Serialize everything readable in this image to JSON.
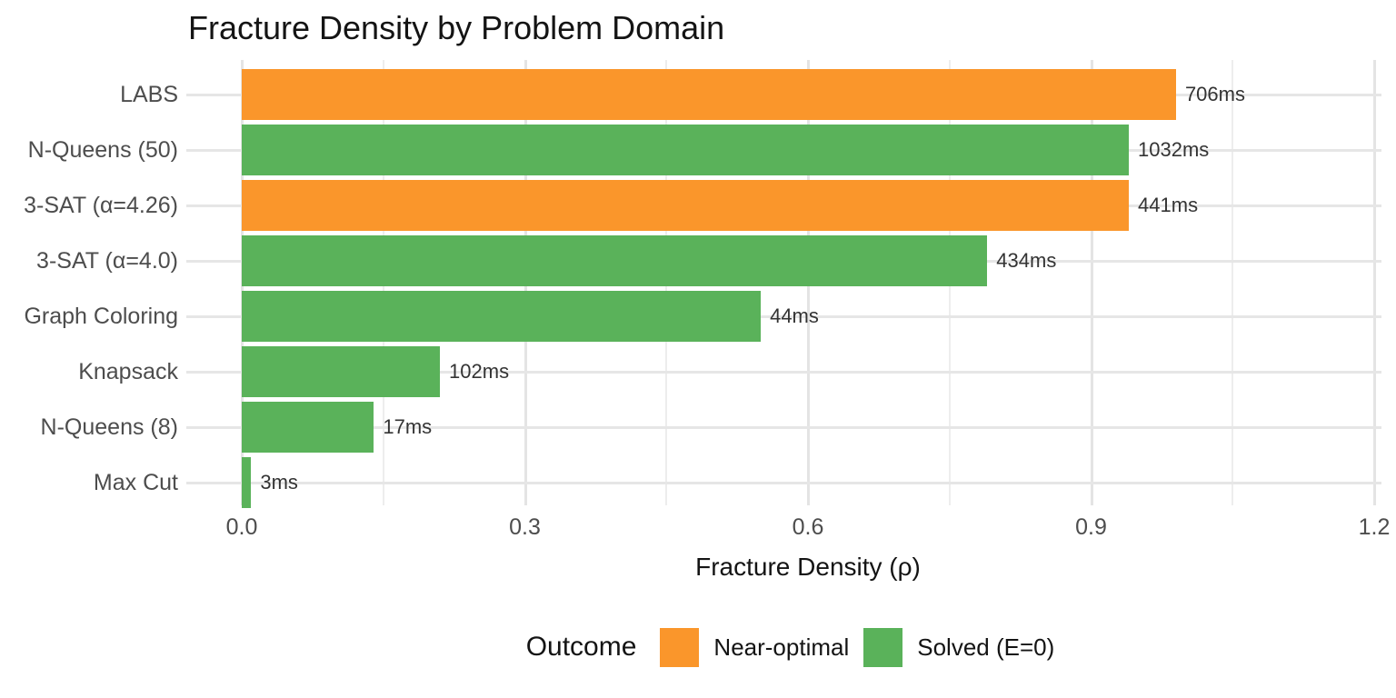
{
  "title": "Fracture Density by Problem Domain",
  "chart_data": {
    "type": "bar",
    "orientation": "horizontal",
    "title": "Fracture Density by Problem Domain",
    "xlabel": "Fracture Density (ρ)",
    "ylabel": "",
    "xlim": [
      0,
      1.2
    ],
    "grid": true,
    "x_major_ticks": [
      {
        "label": "0.0",
        "value": 0.0
      },
      {
        "label": "0.3",
        "value": 0.3
      },
      {
        "label": "0.6",
        "value": 0.6
      },
      {
        "label": "0.9",
        "value": 0.9
      },
      {
        "label": "1.2",
        "value": 1.2
      }
    ],
    "x_minor_tick_values": [
      0.15,
      0.45,
      0.75,
      1.05
    ],
    "categories": [
      "LABS",
      "N-Queens (50)",
      "3-SAT (α=4.26)",
      "3-SAT (α=4.0)",
      "Graph Coloring",
      "Knapsack",
      "N-Queens (8)",
      "Max Cut"
    ],
    "values": [
      0.99,
      0.94,
      0.94,
      0.79,
      0.55,
      0.21,
      0.14,
      0.01
    ],
    "outcomes": [
      "Near-optimal",
      "Solved (E=0)",
      "Near-optimal",
      "Solved (E=0)",
      "Solved (E=0)",
      "Solved (E=0)",
      "Solved (E=0)",
      "Solved (E=0)"
    ],
    "bar_labels": [
      "706ms",
      "1032ms",
      "441ms",
      "434ms",
      "44ms",
      "102ms",
      "17ms",
      "3ms"
    ],
    "legend": {
      "title": "Outcome",
      "position": "bottom",
      "entries": [
        {
          "label": "Near-optimal",
          "color": "#FA962B"
        },
        {
          "label": "Solved (E=0)",
          "color": "#5AB25A"
        }
      ]
    }
  },
  "colors": {
    "near_optimal": "#FA962B",
    "solved": "#5AB25A",
    "grid_major": "#e4e4e4",
    "grid_minor": "#ededed",
    "background": "#ffffff",
    "axis_text": "#4d4d4d",
    "title_text": "#141414"
  }
}
